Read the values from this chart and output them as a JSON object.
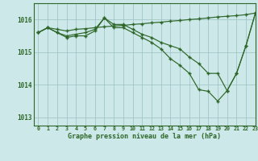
{
  "background_color": "#cce8e8",
  "plot_bg_color": "#cce8e8",
  "grid_color": "#9bbfbf",
  "line_color": "#2d6628",
  "title": "Graphe pression niveau de la mer (hPa)",
  "xlim": [
    -0.5,
    23
  ],
  "ylim": [
    1012.75,
    1016.5
  ],
  "yticks": [
    1013,
    1014,
    1015,
    1016
  ],
  "xticks": [
    0,
    1,
    2,
    3,
    4,
    5,
    6,
    7,
    8,
    9,
    10,
    11,
    12,
    13,
    14,
    15,
    16,
    17,
    18,
    19,
    20,
    21,
    22,
    23
  ],
  "series": [
    [
      1015.6,
      1015.75,
      1015.7,
      1015.65,
      1015.7,
      1015.72,
      1015.75,
      1015.78,
      1015.8,
      1015.82,
      1015.85,
      1015.87,
      1015.9,
      1015.92,
      1015.95,
      1015.97,
      1016.0,
      1016.02,
      1016.05,
      1016.08,
      1016.1,
      1016.12,
      1016.15,
      1016.2
    ],
    [
      1015.6,
      1015.75,
      1015.6,
      1015.5,
      1015.55,
      1015.6,
      1015.7,
      1016.05,
      1015.85,
      1015.85,
      1015.7,
      1015.55,
      1015.45,
      1015.3,
      1015.2,
      1015.1,
      1014.85,
      1014.65,
      1014.35,
      1014.35,
      1013.82,
      1014.35,
      1015.2,
      1016.2
    ],
    [
      1015.6,
      1015.75,
      1015.6,
      1015.45,
      1015.5,
      1015.5,
      1015.65,
      1016.05,
      1015.75,
      1015.75,
      1015.6,
      1015.45,
      1015.3,
      1015.1,
      1014.8,
      1014.6,
      1014.35,
      1013.85,
      1013.8,
      1013.5,
      1013.82,
      1014.35,
      1015.2,
      1016.2
    ]
  ]
}
